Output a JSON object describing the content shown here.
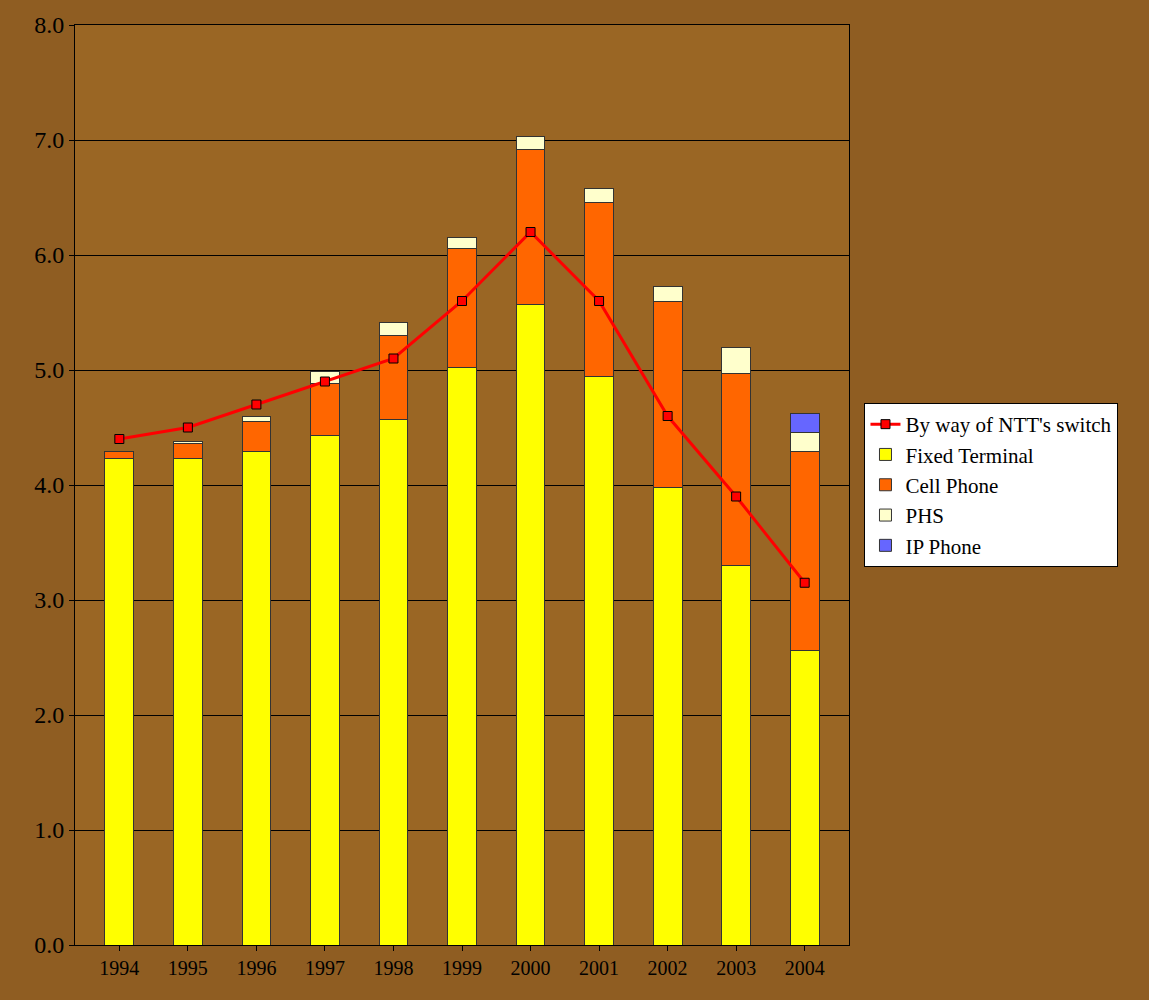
{
  "chart_data": {
    "type": "bar",
    "stacked": true,
    "grid": true,
    "legend": "right",
    "categories": [
      "1994",
      "1995",
      "1996",
      "1997",
      "1998",
      "1999",
      "2000",
      "2001",
      "2002",
      "2003",
      "2004"
    ],
    "ylim": [
      0,
      8
    ],
    "yticks": [
      {
        "value": 0,
        "label": "0.0"
      },
      {
        "value": 1,
        "label": "1.0"
      },
      {
        "value": 2,
        "label": "2.0"
      },
      {
        "value": 3,
        "label": "3.0"
      },
      {
        "value": 4,
        "label": "4.0"
      },
      {
        "value": 5,
        "label": "5.0"
      },
      {
        "value": 6,
        "label": "6.0"
      },
      {
        "value": 7,
        "label": "7.0"
      },
      {
        "value": 8,
        "label": "8.0"
      }
    ],
    "series": [
      {
        "name": "Fixed Terminal",
        "type": "bar",
        "color": "#ffff00",
        "values": [
          4.23,
          4.23,
          4.29,
          4.43,
          4.57,
          5.02,
          5.57,
          4.94,
          3.98,
          3.3,
          2.56
        ]
      },
      {
        "name": "Cell Phone",
        "type": "bar",
        "color": "#ff6600",
        "values": [
          0.06,
          0.13,
          0.26,
          0.45,
          0.73,
          1.04,
          1.35,
          1.52,
          1.62,
          1.67,
          1.73
        ]
      },
      {
        "name": "PHS",
        "type": "bar",
        "color": "#ffffcc",
        "values": [
          0,
          0.02,
          0.05,
          0.11,
          0.11,
          0.09,
          0.11,
          0.12,
          0.13,
          0.23,
          0.17
        ]
      },
      {
        "name": "IP Phone",
        "type": "bar",
        "color": "#6666ff",
        "values": [
          null,
          null,
          null,
          null,
          null,
          null,
          null,
          null,
          null,
          null,
          0.16
        ]
      },
      {
        "name": "By way of NTT's switch",
        "type": "line",
        "color": "#ff0000",
        "marker": "square",
        "line_style": "solid",
        "values": [
          4.4,
          4.5,
          4.7,
          4.9,
          5.1,
          5.6,
          6.2,
          5.6,
          4.6,
          3.9,
          3.15
        ]
      }
    ]
  }
}
